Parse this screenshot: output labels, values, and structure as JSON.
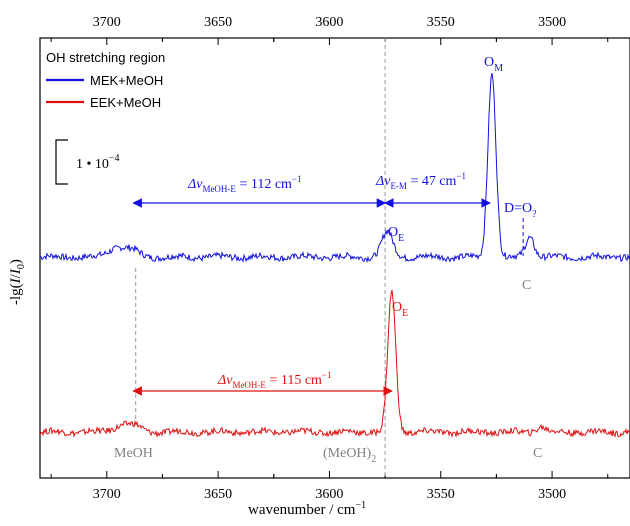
{
  "chart_data": {
    "type": "line",
    "title": "",
    "xlabel": "wavenumber / cm",
    "xlabel_sup": "−1",
    "ylabel": "-lg(I/I0)",
    "xlim": [
      3730,
      3465
    ],
    "x_ticks": [
      3700,
      3650,
      3600,
      3550,
      3500
    ],
    "x_reversed": true,
    "legend": {
      "title": "OH stretching region",
      "placement": "top-left",
      "entries": [
        {
          "name": "MEK+MeOH",
          "color": "#1010e0"
        },
        {
          "name": "EEK+MeOH",
          "color": "#e01010"
        }
      ]
    },
    "scale_bar": {
      "label": "1 • 10",
      "exponent": "−4"
    },
    "series": [
      {
        "name": "MEK+MeOH",
        "color": "#1010e0",
        "offset": 0.62,
        "peaks": [
          {
            "x": 3695,
            "y": 0.22,
            "w": 4
          },
          {
            "x": 3688,
            "y": 0.12,
            "w": 3
          },
          {
            "x": 3574,
            "y": 0.55,
            "w": 2.5
          },
          {
            "x": 3527,
            "y": 4.1,
            "w": 1.8
          },
          {
            "x": 3510,
            "y": 0.45,
            "w": 2
          }
        ]
      },
      {
        "name": "EEK+MeOH",
        "color": "#e01010",
        "offset": 0.0,
        "peaks": [
          {
            "x": 3693,
            "y": 0.15,
            "w": 4
          },
          {
            "x": 3687,
            "y": 0.1,
            "w": 3
          },
          {
            "x": 3572,
            "y": 3.1,
            "w": 1.8
          },
          {
            "x": 3505,
            "y": 0.12,
            "w": 2
          }
        ]
      }
    ],
    "reference_lines": [
      {
        "x": 3575,
        "style": "dashed",
        "color": "#999999"
      },
      {
        "x": 3687,
        "style": "dashed",
        "color": "#999999"
      },
      {
        "x": 3513,
        "style": "dashed",
        "color": "#1010e0"
      }
    ],
    "annotations": {
      "blue_arrow_1": {
        "from": 3688,
        "to": 3575,
        "label_pre": "Δν",
        "label_sub": "MeOH-E",
        "label_post": " =  112 cm",
        "label_sup": "−1"
      },
      "blue_arrow_2": {
        "from": 3575,
        "to": 3528,
        "label_pre": "Δν",
        "label_sub": "E-M",
        "label_post": " = 47 cm",
        "label_sup": "−1"
      },
      "red_arrow": {
        "from": 3688,
        "to": 3572,
        "label_pre": "Δν",
        "label_sub": "MeOH-E",
        "label_post": " = 115 cm",
        "label_sup": "−1"
      },
      "O_M": {
        "main": "O",
        "sub": "M"
      },
      "O_E_blue": {
        "main": "O",
        "sub": "E"
      },
      "O_E_red": {
        "main": "O",
        "sub": "E"
      },
      "D_O": {
        "main": "D=O",
        "sub": "?"
      },
      "C_upper": "C",
      "C_lower": "C",
      "MeOH_label": "MeOH",
      "MeOH2_label": "(MeOH)",
      "MeOH2_sub": "2"
    }
  }
}
